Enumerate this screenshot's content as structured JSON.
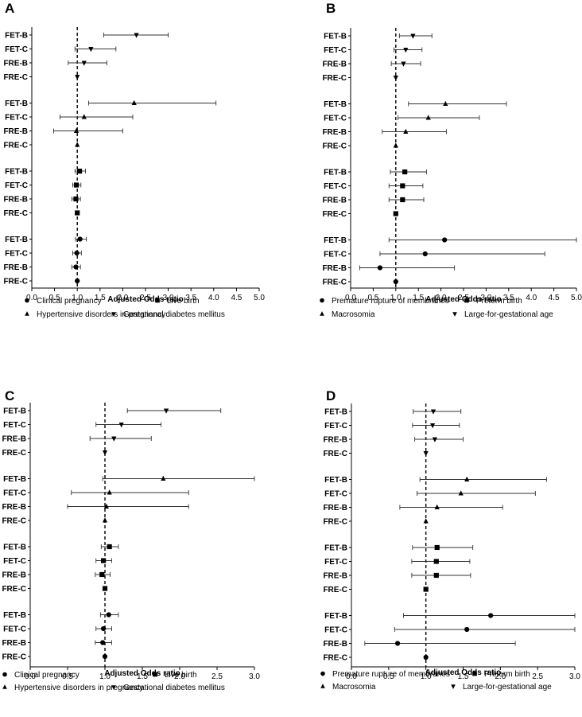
{
  "chart_data": [
    {
      "panel": "A",
      "type": "forest",
      "xlabel": "Adjusted Odds ratio",
      "xlim": [
        0,
        5
      ],
      "xticks": [
        "0.0",
        "0.5",
        "1.0",
        "1.5",
        "2.0",
        "2.5",
        "3.0",
        "3.5",
        "4.0",
        "4.5",
        "5.0"
      ],
      "reference_line": 1.0,
      "legend": [
        {
          "marker": "circle",
          "label": "Clinical pregnancy"
        },
        {
          "marker": "square",
          "label": "Live birth"
        },
        {
          "marker": "triangle-up",
          "label": "Hypertensive disorders in pregnancy"
        },
        {
          "marker": "triangle-down",
          "label": "Gestational diabetes mellitus"
        }
      ],
      "groups": [
        {
          "outcome": "Gestational diabetes mellitus",
          "marker": "triangle-down",
          "rows": [
            {
              "label": "FET-B",
              "or": 2.3,
              "lo": 1.58,
              "hi": 3.0
            },
            {
              "label": "FET-C",
              "or": 1.3,
              "lo": 0.95,
              "hi": 1.85
            },
            {
              "label": "FRE-B",
              "or": 1.15,
              "lo": 0.8,
              "hi": 1.65
            },
            {
              "label": "FRE-C",
              "or": 1.0,
              "lo": 1.0,
              "hi": 1.0
            }
          ]
        },
        {
          "outcome": "Hypertensive disorders in pregnancy",
          "marker": "triangle-up",
          "rows": [
            {
              "label": "FET-B",
              "or": 2.25,
              "lo": 1.25,
              "hi": 4.05
            },
            {
              "label": "FET-C",
              "or": 1.15,
              "lo": 0.62,
              "hi": 2.22
            },
            {
              "label": "FRE-B",
              "or": 0.98,
              "lo": 0.48,
              "hi": 2.0
            },
            {
              "label": "FRE-C",
              "or": 1.0,
              "lo": 1.0,
              "hi": 1.0
            }
          ]
        },
        {
          "outcome": "Live birth",
          "marker": "square",
          "rows": [
            {
              "label": "FET-B",
              "or": 1.05,
              "lo": 0.95,
              "hi": 1.18
            },
            {
              "label": "FET-C",
              "or": 0.98,
              "lo": 0.9,
              "hi": 1.08
            },
            {
              "label": "FRE-B",
              "or": 0.97,
              "lo": 0.88,
              "hi": 1.07
            },
            {
              "label": "FRE-C",
              "or": 1.0,
              "lo": 1.0,
              "hi": 1.0
            }
          ]
        },
        {
          "outcome": "Clinical pregnancy",
          "marker": "circle",
          "rows": [
            {
              "label": "FET-B",
              "or": 1.06,
              "lo": 0.96,
              "hi": 1.2
            },
            {
              "label": "FET-C",
              "or": 0.99,
              "lo": 0.9,
              "hi": 1.09
            },
            {
              "label": "FRE-B",
              "or": 0.97,
              "lo": 0.88,
              "hi": 1.07
            },
            {
              "label": "FRE-C",
              "or": 1.0,
              "lo": 1.0,
              "hi": 1.0
            }
          ]
        }
      ]
    },
    {
      "panel": "B",
      "type": "forest",
      "xlabel": "Adjusted Odds ratio",
      "xlim": [
        0,
        5
      ],
      "xticks": [
        "0.0",
        "0.5",
        "1.0",
        "1.5",
        "2.0",
        "2.5",
        "3.0",
        "3.5",
        "4.0",
        "4.5",
        "5.0"
      ],
      "reference_line": 1.0,
      "legend": [
        {
          "marker": "circle",
          "label": "Premature rupture of membranes"
        },
        {
          "marker": "square",
          "label": "Preterm birth"
        },
        {
          "marker": "triangle-up",
          "label": "Macrosomia"
        },
        {
          "marker": "triangle-down",
          "label": "Large-for-gestational age"
        }
      ],
      "groups": [
        {
          "outcome": "Large-for-gestational age",
          "marker": "triangle-down",
          "rows": [
            {
              "label": "FET-B",
              "or": 1.38,
              "lo": 1.08,
              "hi": 1.8
            },
            {
              "label": "FET-C",
              "or": 1.22,
              "lo": 0.96,
              "hi": 1.58
            },
            {
              "label": "FRE-B",
              "or": 1.17,
              "lo": 0.9,
              "hi": 1.55
            },
            {
              "label": "FRE-C",
              "or": 1.0,
              "lo": 1.0,
              "hi": 1.0
            }
          ]
        },
        {
          "outcome": "Macrosomia",
          "marker": "triangle-up",
          "rows": [
            {
              "label": "FET-B",
              "or": 2.1,
              "lo": 1.28,
              "hi": 3.45
            },
            {
              "label": "FET-C",
              "or": 1.72,
              "lo": 1.05,
              "hi": 2.85
            },
            {
              "label": "FRE-B",
              "or": 1.22,
              "lo": 0.7,
              "hi": 2.12
            },
            {
              "label": "FRE-C",
              "or": 1.0,
              "lo": 1.0,
              "hi": 1.0
            }
          ]
        },
        {
          "outcome": "Preterm birth",
          "marker": "square",
          "rows": [
            {
              "label": "FET-B",
              "or": 1.2,
              "lo": 0.88,
              "hi": 1.68
            },
            {
              "label": "FET-C",
              "or": 1.15,
              "lo": 0.85,
              "hi": 1.6
            },
            {
              "label": "FRE-B",
              "or": 1.15,
              "lo": 0.85,
              "hi": 1.62
            },
            {
              "label": "FRE-C",
              "or": 1.0,
              "lo": 1.0,
              "hi": 1.0
            }
          ]
        },
        {
          "outcome": "Premature rupture of membranes",
          "marker": "circle",
          "rows": [
            {
              "label": "FET-B",
              "or": 2.08,
              "lo": 0.85,
              "hi": 5.0
            },
            {
              "label": "FET-C",
              "or": 1.65,
              "lo": 0.65,
              "hi": 4.3
            },
            {
              "label": "FRE-B",
              "or": 0.65,
              "lo": 0.2,
              "hi": 2.3
            },
            {
              "label": "FRE-C",
              "or": 1.0,
              "lo": 1.0,
              "hi": 1.0
            }
          ]
        }
      ]
    },
    {
      "panel": "C",
      "type": "forest",
      "xlabel": "Adjusted Odds ratio",
      "xlim": [
        0,
        3
      ],
      "xticks": [
        "0.0",
        "0.5",
        "1.0",
        "1.5",
        "2.0",
        "2.5",
        "3.0"
      ],
      "reference_line": 1.0,
      "legend": [
        {
          "marker": "circle",
          "label": "Clinical pregnancy"
        },
        {
          "marker": "square",
          "label": "Live birth"
        },
        {
          "marker": "triangle-up",
          "label": "Hypertensive disorders in pregnancy"
        },
        {
          "marker": "triangle-down",
          "label": "Gestational diabetes mellitus"
        }
      ],
      "groups": [
        {
          "outcome": "Gestational diabetes mellitus",
          "marker": "triangle-down",
          "rows": [
            {
              "label": "FET-B",
              "or": 1.82,
              "lo": 1.3,
              "hi": 2.55
            },
            {
              "label": "FET-C",
              "or": 1.22,
              "lo": 0.88,
              "hi": 1.75
            },
            {
              "label": "FRE-B",
              "or": 1.12,
              "lo": 0.8,
              "hi": 1.62
            },
            {
              "label": "FRE-C",
              "or": 1.0,
              "lo": 1.0,
              "hi": 1.0
            }
          ]
        },
        {
          "outcome": "Hypertensive disorders in pregnancy",
          "marker": "triangle-up",
          "rows": [
            {
              "label": "FET-B",
              "or": 1.78,
              "lo": 0.97,
              "hi": 3.0
            },
            {
              "label": "FET-C",
              "or": 1.06,
              "lo": 0.55,
              "hi": 2.12
            },
            {
              "label": "FRE-B",
              "or": 1.02,
              "lo": 0.5,
              "hi": 2.12
            },
            {
              "label": "FRE-C",
              "or": 1.0,
              "lo": 1.0,
              "hi": 1.0
            }
          ]
        },
        {
          "outcome": "Live birth",
          "marker": "square",
          "rows": [
            {
              "label": "FET-B",
              "or": 1.06,
              "lo": 0.95,
              "hi": 1.18
            },
            {
              "label": "FET-C",
              "or": 0.98,
              "lo": 0.88,
              "hi": 1.09
            },
            {
              "label": "FRE-B",
              "or": 0.96,
              "lo": 0.87,
              "hi": 1.07
            },
            {
              "label": "FRE-C",
              "or": 1.0,
              "lo": 1.0,
              "hi": 1.0
            }
          ]
        },
        {
          "outcome": "Clinical pregnancy",
          "marker": "circle",
          "rows": [
            {
              "label": "FET-B",
              "or": 1.05,
              "lo": 0.94,
              "hi": 1.18
            },
            {
              "label": "FET-C",
              "or": 0.98,
              "lo": 0.88,
              "hi": 1.09
            },
            {
              "label": "FRE-B",
              "or": 0.97,
              "lo": 0.87,
              "hi": 1.09
            },
            {
              "label": "FRE-C",
              "or": 1.0,
              "lo": 1.0,
              "hi": 1.0
            }
          ]
        }
      ]
    },
    {
      "panel": "D",
      "type": "forest",
      "xlabel": "Adjusted Odds ratio",
      "xlim": [
        0,
        3
      ],
      "xticks": [
        "0.0",
        "0.5",
        "1.0",
        "1.5",
        "2.0",
        "2.5",
        "3.0"
      ],
      "reference_line": 1.0,
      "legend": [
        {
          "marker": "circle",
          "label": "Premature rupture of membranes"
        },
        {
          "marker": "square",
          "label": "Preterm birth"
        },
        {
          "marker": "triangle-up",
          "label": "Macrosomia"
        },
        {
          "marker": "triangle-down",
          "label": "Large-for-gestational age"
        }
      ],
      "groups": [
        {
          "outcome": "Large-for-gestational age",
          "marker": "triangle-down",
          "rows": [
            {
              "label": "FET-B",
              "or": 1.1,
              "lo": 0.83,
              "hi": 1.47
            },
            {
              "label": "FET-C",
              "or": 1.09,
              "lo": 0.82,
              "hi": 1.45
            },
            {
              "label": "FRE-B",
              "or": 1.12,
              "lo": 0.85,
              "hi": 1.5
            },
            {
              "label": "FRE-C",
              "or": 1.0,
              "lo": 1.0,
              "hi": 1.0
            }
          ]
        },
        {
          "outcome": "Macrosomia",
          "marker": "triangle-up",
          "rows": [
            {
              "label": "FET-B",
              "or": 1.55,
              "lo": 0.92,
              "hi": 2.62
            },
            {
              "label": "FET-C",
              "or": 1.47,
              "lo": 0.88,
              "hi": 2.47
            },
            {
              "label": "FRE-B",
              "or": 1.15,
              "lo": 0.65,
              "hi": 2.03
            },
            {
              "label": "FRE-C",
              "or": 1.0,
              "lo": 1.0,
              "hi": 1.0
            }
          ]
        },
        {
          "outcome": "Preterm birth",
          "marker": "square",
          "rows": [
            {
              "label": "FET-B",
              "or": 1.15,
              "lo": 0.82,
              "hi": 1.63
            },
            {
              "label": "FET-C",
              "or": 1.14,
              "lo": 0.81,
              "hi": 1.59
            },
            {
              "label": "FRE-B",
              "or": 1.14,
              "lo": 0.81,
              "hi": 1.6
            },
            {
              "label": "FRE-C",
              "or": 1.0,
              "lo": 1.0,
              "hi": 1.0
            }
          ]
        },
        {
          "outcome": "Premature rupture of membranes",
          "marker": "circle",
          "rows": [
            {
              "label": "FET-B",
              "or": 1.87,
              "lo": 0.7,
              "hi": 3.0
            },
            {
              "label": "FET-C",
              "or": 1.55,
              "lo": 0.58,
              "hi": 3.0
            },
            {
              "label": "FRE-B",
              "or": 0.62,
              "lo": 0.18,
              "hi": 2.2
            },
            {
              "label": "FRE-C",
              "or": 1.0,
              "lo": 1.0,
              "hi": 1.0
            }
          ]
        }
      ]
    }
  ]
}
